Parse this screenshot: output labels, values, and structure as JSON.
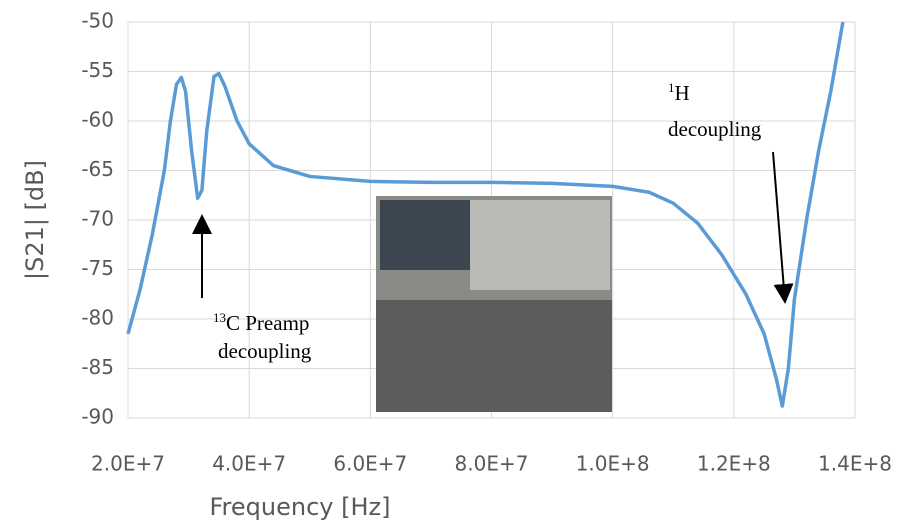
{
  "chart_data": {
    "type": "line",
    "x_label": "Frequency [Hz]",
    "y_label": "|S21| [dB]",
    "x": [
      20000000,
      22000000,
      24000000,
      26000000,
      27000000,
      28000000,
      28800000,
      29500000,
      30500000,
      31500000,
      32200000,
      33000000,
      34200000,
      35000000,
      36000000,
      38000000,
      40000000,
      44000000,
      50000000,
      60000000,
      70000000,
      80000000,
      90000000,
      100000000,
      106000000,
      110000000,
      114000000,
      118000000,
      122000000,
      125000000,
      127000000,
      128000000,
      129000000,
      130000000,
      132000000,
      134000000,
      136000000,
      138000000
    ],
    "series": [
      {
        "color": "#5b9bd5",
        "values": [
          -81.5,
          -77,
          -71.5,
          -65,
          -60,
          -56.3,
          -55.6,
          -57,
          -63,
          -67.8,
          -67,
          -61,
          -55.5,
          -55.2,
          -56.5,
          -60,
          -62.3,
          -64.5,
          -65.6,
          -66.1,
          -66.2,
          -66.2,
          -66.3,
          -66.6,
          -67.2,
          -68.3,
          -70.3,
          -73.5,
          -77.5,
          -81.5,
          -86,
          -88.8,
          -85,
          -78,
          -70,
          -63,
          -57,
          -50
        ]
      }
    ],
    "xlim": [
      20000000,
      140000000
    ],
    "xticks": [
      {
        "value": 20000000,
        "label": "2.0E+7"
      },
      {
        "value": 40000000,
        "label": "4.0E+7"
      },
      {
        "value": 60000000,
        "label": "6.0E+7"
      },
      {
        "value": 80000000,
        "label": "8.0E+7"
      },
      {
        "value": 100000000,
        "label": "1.0E+8"
      },
      {
        "value": 120000000,
        "label": "1.2E+8"
      },
      {
        "value": 140000000,
        "label": "1.4E+8"
      }
    ],
    "ylim": [
      -90,
      -50
    ],
    "yticks": [
      -90,
      -85,
      -80,
      -75,
      -70,
      -65,
      -60,
      -55,
      -50
    ],
    "grid": true,
    "annotations": [
      {
        "sup": "1",
        "text": "H",
        "line2": "decoupling"
      },
      {
        "sup": "13",
        "text": "C Preamp",
        "line2": "decoupling"
      }
    ]
  }
}
